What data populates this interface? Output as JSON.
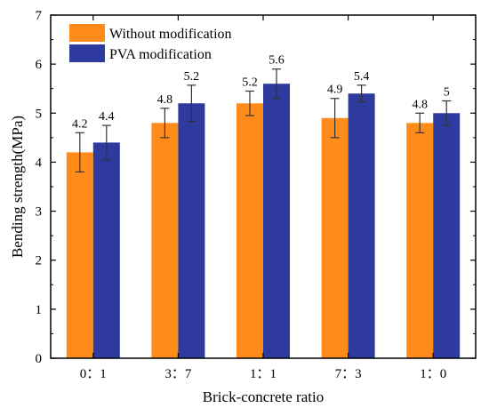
{
  "chart_data": {
    "type": "bar",
    "title": "",
    "xlabel": "Brick-concrete ratio",
    "ylabel": "Bending strength(MPa)",
    "categories": [
      "0：1",
      "3：7",
      "1：1",
      "7：3",
      "1：0"
    ],
    "ylim": [
      0,
      7
    ],
    "yticks": [
      "0",
      "1",
      "2",
      "3",
      "4",
      "5",
      "6",
      "7"
    ],
    "grid": false,
    "legend_position": "top-left",
    "series": [
      {
        "name": "Without modification",
        "color": "#FF8C1A",
        "values": [
          4.2,
          4.8,
          5.2,
          4.9,
          4.8
        ],
        "errors": [
          0.4,
          0.3,
          0.25,
          0.4,
          0.2
        ],
        "labels": [
          "4.2",
          "4.8",
          "5.2",
          "4.9",
          "4.8"
        ]
      },
      {
        "name": "PVA modification",
        "color": "#2E3A9E",
        "values": [
          4.4,
          5.2,
          5.6,
          5.4,
          5.0
        ],
        "errors": [
          0.35,
          0.37,
          0.3,
          0.17,
          0.25
        ],
        "labels": [
          "4.4",
          "5.2",
          "5.6",
          "5.4",
          "5"
        ]
      }
    ]
  }
}
